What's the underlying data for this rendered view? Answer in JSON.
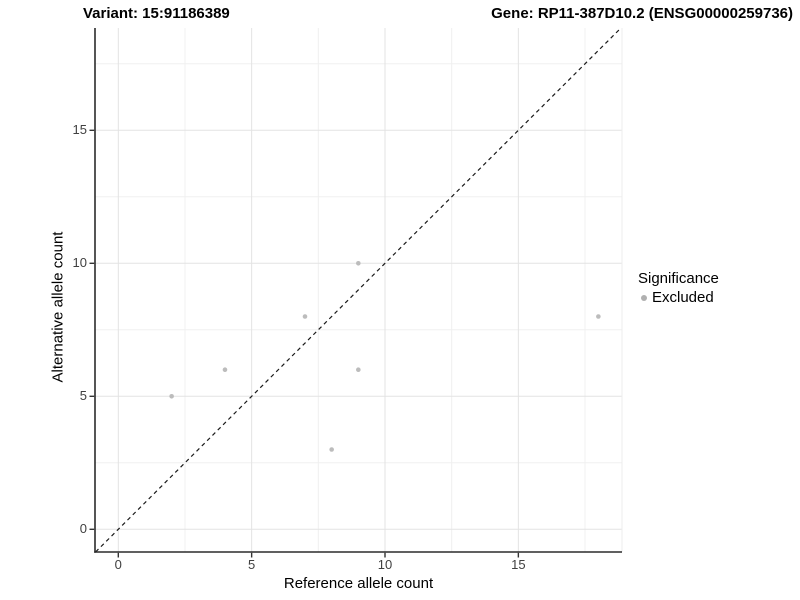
{
  "titles": {
    "variant": "Variant: 15:91186389",
    "gene": "Gene: RP11-387D10.2 (ENSG00000259736)"
  },
  "chart_data": {
    "type": "scatter",
    "xlabel": "Reference allele count",
    "ylabel": "Alternative allele count",
    "x_ticks": [
      0,
      5,
      10,
      15
    ],
    "y_ticks": [
      0,
      5,
      10,
      15
    ],
    "x_minor": [
      2.5,
      7.5,
      12.5,
      17.5
    ],
    "y_minor": [
      2.5,
      7.5,
      12.5,
      17.5
    ],
    "xlim": [
      -0.87,
      18.88
    ],
    "ylim": [
      -0.85,
      18.85
    ],
    "grid": true,
    "identity_line": {
      "slope": 1,
      "intercept": 0,
      "style": "dashed",
      "color": "#1a1a1a"
    },
    "series": [
      {
        "name": "Excluded",
        "color": "#bcbcbc",
        "points": [
          [
            2,
            5
          ],
          [
            4,
            6
          ],
          [
            7,
            8
          ],
          [
            8,
            3
          ],
          [
            9,
            6
          ],
          [
            9,
            10
          ],
          [
            18,
            8
          ]
        ]
      }
    ],
    "legend": {
      "title": "Significance",
      "position": "right",
      "items": [
        {
          "label": "Excluded",
          "color": "#b0b0b0"
        }
      ]
    },
    "style": {
      "grid_major_color": "#e3e3e3",
      "grid_minor_color": "#f0f0f0",
      "axis_line_color": "#2b2b2b",
      "tick_mark_color": "#333333",
      "tick_label_color": "#404040"
    }
  }
}
